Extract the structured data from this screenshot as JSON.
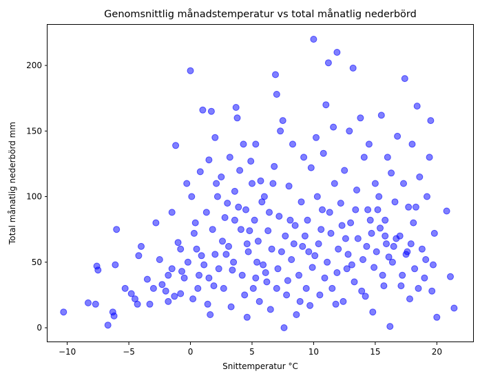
{
  "chart_data": {
    "type": "scatter",
    "title": "Genomsnittlig månadstemperatur vs total månatlig nederbörd",
    "xlabel": "Snittemperatur °C",
    "ylabel": "Total månatlig nederbörd mm",
    "xlim": [
      -11.6,
      23.0
    ],
    "ylim": [
      -11.0,
      231.0
    ],
    "xticks": [
      -10,
      -5,
      0,
      5,
      10,
      15,
      20
    ],
    "yticks": [
      0,
      50,
      100,
      150,
      200
    ],
    "grid": false,
    "legend": "none",
    "marker_color": "#0000ff",
    "marker_alpha": 0.5,
    "series": [
      {
        "points": [
          [
            -10.3,
            12
          ],
          [
            -8.3,
            19
          ],
          [
            -7.7,
            18
          ],
          [
            -7.6,
            47
          ],
          [
            -7.5,
            44
          ],
          [
            -6.7,
            2
          ],
          [
            -6.3,
            12
          ],
          [
            -6.2,
            9
          ],
          [
            -6.1,
            48
          ],
          [
            -6.0,
            75
          ],
          [
            -5.3,
            30
          ],
          [
            -4.8,
            26
          ],
          [
            -4.5,
            22
          ],
          [
            -4.3,
            18
          ],
          [
            -4.2,
            55
          ],
          [
            -4.0,
            62
          ],
          [
            -3.5,
            37
          ],
          [
            -3.3,
            18
          ],
          [
            -3.0,
            30
          ],
          [
            -2.8,
            80
          ],
          [
            -2.5,
            52
          ],
          [
            -2.3,
            33
          ],
          [
            -2.0,
            28
          ],
          [
            -1.8,
            20
          ],
          [
            -1.5,
            45
          ],
          [
            -1.5,
            88
          ],
          [
            -1.3,
            24
          ],
          [
            -1.2,
            139
          ],
          [
            -1.0,
            65
          ],
          [
            -0.8,
            60
          ],
          [
            -0.7,
            43
          ],
          [
            -0.5,
            38
          ],
          [
            -0.3,
            110
          ],
          [
            -0.2,
            50
          ],
          [
            0.0,
            196
          ],
          [
            0.1,
            100
          ],
          [
            0.2,
            22
          ],
          [
            0.4,
            80
          ],
          [
            0.5,
            60
          ],
          [
            0.6,
            30
          ],
          [
            0.8,
            119
          ],
          [
            1.0,
            166
          ],
          [
            1.1,
            48
          ],
          [
            1.3,
            88
          ],
          [
            1.5,
            38
          ],
          [
            1.5,
            128
          ],
          [
            1.6,
            10
          ],
          [
            1.7,
            165
          ],
          [
            1.8,
            75
          ],
          [
            2.0,
            56
          ],
          [
            2.0,
            145
          ],
          [
            2.2,
            100
          ],
          [
            2.3,
            45
          ],
          [
            2.5,
            115
          ],
          [
            2.7,
            30
          ],
          [
            2.8,
            84
          ],
          [
            3.0,
            95
          ],
          [
            3.1,
            62
          ],
          [
            3.2,
            130
          ],
          [
            3.3,
            16
          ],
          [
            3.5,
            50
          ],
          [
            3.6,
            104
          ],
          [
            3.7,
            168
          ],
          [
            3.8,
            160
          ],
          [
            4.0,
            120
          ],
          [
            4.1,
            75
          ],
          [
            4.2,
            40
          ],
          [
            4.3,
            140
          ],
          [
            4.5,
            90
          ],
          [
            4.6,
            8
          ],
          [
            4.7,
            58
          ],
          [
            4.9,
            127
          ],
          [
            5.0,
            110
          ],
          [
            5.1,
            30
          ],
          [
            5.2,
            82
          ],
          [
            5.3,
            140
          ],
          [
            5.5,
            66
          ],
          [
            5.6,
            20
          ],
          [
            5.7,
            112
          ],
          [
            5.9,
            48
          ],
          [
            6.0,
            100
          ],
          [
            6.2,
            35
          ],
          [
            6.4,
            88
          ],
          [
            6.5,
            14
          ],
          [
            6.6,
            60
          ],
          [
            6.8,
            123
          ],
          [
            6.9,
            193
          ],
          [
            7.0,
            178
          ],
          [
            7.1,
            45
          ],
          [
            7.2,
            85
          ],
          [
            7.3,
            150
          ],
          [
            7.5,
            158
          ],
          [
            7.6,
            0
          ],
          [
            7.7,
            70
          ],
          [
            7.8,
            25
          ],
          [
            8.0,
            108
          ],
          [
            8.2,
            52
          ],
          [
            8.3,
            140
          ],
          [
            8.5,
            78
          ],
          [
            8.6,
            10
          ],
          [
            8.8,
            40
          ],
          [
            9.0,
            96
          ],
          [
            9.1,
            62
          ],
          [
            9.2,
            130
          ],
          [
            9.4,
            30
          ],
          [
            9.5,
            82
          ],
          [
            9.7,
            17
          ],
          [
            9.8,
            122
          ],
          [
            10.0,
            220
          ],
          [
            10.1,
            55
          ],
          [
            10.2,
            145
          ],
          [
            10.3,
            100
          ],
          [
            10.5,
            25
          ],
          [
            10.6,
            75
          ],
          [
            10.8,
            133
          ],
          [
            11.0,
            170
          ],
          [
            11.1,
            50
          ],
          [
            11.2,
            202
          ],
          [
            11.3,
            88
          ],
          [
            11.5,
            30
          ],
          [
            11.6,
            153
          ],
          [
            11.7,
            110
          ],
          [
            11.9,
            210
          ],
          [
            12.0,
            60
          ],
          [
            12.2,
            95
          ],
          [
            12.4,
            20
          ],
          [
            12.5,
            120
          ],
          [
            12.7,
            45
          ],
          [
            12.9,
            150
          ],
          [
            13.0,
            80
          ],
          [
            13.2,
            198
          ],
          [
            13.3,
            35
          ],
          [
            13.5,
            105
          ],
          [
            13.6,
            68
          ],
          [
            13.8,
            160
          ],
          [
            14.0,
            52
          ],
          [
            14.1,
            130
          ],
          [
            14.2,
            24
          ],
          [
            14.4,
            90
          ],
          [
            14.5,
            140
          ],
          [
            14.7,
            72
          ],
          [
            14.8,
            12
          ],
          [
            15.0,
            110
          ],
          [
            15.1,
            58
          ],
          [
            15.3,
            100
          ],
          [
            15.5,
            162
          ],
          [
            15.6,
            40
          ],
          [
            15.8,
            82
          ],
          [
            15.9,
            64
          ],
          [
            16.0,
            130
          ],
          [
            16.2,
            1
          ],
          [
            16.3,
            118
          ],
          [
            16.4,
            50
          ],
          [
            16.6,
            96
          ],
          [
            16.8,
            146
          ],
          [
            17.0,
            70
          ],
          [
            17.1,
            32
          ],
          [
            17.3,
            110
          ],
          [
            17.4,
            190
          ],
          [
            17.5,
            56
          ],
          [
            17.7,
            92
          ],
          [
            17.8,
            22
          ],
          [
            18.0,
            140
          ],
          [
            18.1,
            80
          ],
          [
            18.2,
            45
          ],
          [
            18.4,
            169
          ],
          [
            18.6,
            115
          ],
          [
            18.8,
            60
          ],
          [
            19.0,
            38
          ],
          [
            19.2,
            100
          ],
          [
            19.4,
            130
          ],
          [
            19.5,
            158
          ],
          [
            19.6,
            28
          ],
          [
            19.8,
            72
          ],
          [
            20.0,
            8
          ],
          [
            20.8,
            89
          ],
          [
            21.1,
            39
          ],
          [
            21.4,
            15
          ],
          [
            -1.8,
            40
          ],
          [
            -0.8,
            26
          ],
          [
            0.3,
            72
          ],
          [
            0.9,
            55
          ],
          [
            1.4,
            18
          ],
          [
            2.1,
            110
          ],
          [
            2.6,
            66
          ],
          [
            3.4,
            44
          ],
          [
            3.9,
            92
          ],
          [
            4.4,
            25
          ],
          [
            4.8,
            74
          ],
          [
            5.4,
            50
          ],
          [
            5.8,
            96
          ],
          [
            6.1,
            42
          ],
          [
            6.7,
            110
          ],
          [
            7.4,
            58
          ],
          [
            7.9,
            36
          ],
          [
            8.4,
            64
          ],
          [
            8.9,
            20
          ],
          [
            9.3,
            70
          ],
          [
            9.9,
            46
          ],
          [
            10.4,
            64
          ],
          [
            10.9,
            38
          ],
          [
            11.4,
            72
          ],
          [
            11.8,
            18
          ],
          [
            12.3,
            78
          ],
          [
            12.8,
            56
          ],
          [
            13.4,
            90
          ],
          [
            13.9,
            28
          ],
          [
            14.3,
            62
          ],
          [
            14.9,
            46
          ],
          [
            15.4,
            76
          ],
          [
            15.7,
            32
          ],
          [
            16.1,
            54
          ],
          [
            16.7,
            68
          ],
          [
            17.2,
            40
          ],
          [
            17.9,
            64
          ],
          [
            18.5,
            30
          ],
          [
            19.1,
            52
          ],
          [
            19.7,
            48
          ],
          [
            0.7,
            40
          ],
          [
            1.9,
            32
          ],
          [
            2.9,
            56
          ],
          [
            3.6,
            82
          ],
          [
            4.6,
            64
          ],
          [
            5.3,
            38
          ],
          [
            6.3,
            74
          ],
          [
            7.0,
            30
          ],
          [
            8.1,
            82
          ],
          [
            9.6,
            58
          ],
          [
            10.7,
            90
          ],
          [
            11.9,
            42
          ],
          [
            12.6,
            68
          ],
          [
            13.1,
            48
          ],
          [
            14.6,
            82
          ],
          [
            15.2,
            90
          ],
          [
            15.8,
            70
          ],
          [
            16.5,
            62
          ],
          [
            17.6,
            58
          ],
          [
            18.3,
            92
          ]
        ]
      }
    ]
  }
}
